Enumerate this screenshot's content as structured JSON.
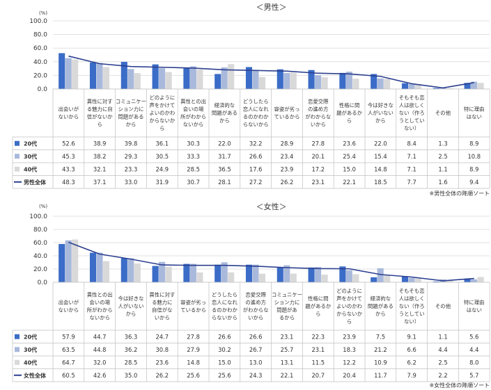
{
  "chart_data": [
    {
      "type": "bar",
      "title": "＜男性＞",
      "ylabel": "(%)",
      "ylim": [
        0,
        100
      ],
      "yticks": [
        "100.0",
        "80.0",
        "60.0",
        "40.0",
        "20.0",
        "0.0"
      ],
      "categories": [
        [
          "出会いが",
          "ないから"
        ],
        [
          "異性に対す",
          "る魅力に自",
          "信がないか",
          "ら"
        ],
        [
          "コミュニケー",
          "ション力に",
          "問題がある",
          "から"
        ],
        [
          "どのように",
          "声をかけて",
          "よいのかわ",
          "からないか",
          "ら"
        ],
        [
          "異性との出",
          "会いの場",
          "所がわから",
          "ないから"
        ],
        [
          "経済的な",
          "問題がある",
          "から"
        ],
        [
          "どうしたら",
          "恋人になれ",
          "るのかわか",
          "らないから"
        ],
        [
          "容姿が劣っ",
          "ているから"
        ],
        [
          "恋愛交際",
          "の進め方",
          "がわからな",
          "いから"
        ],
        [
          "性格に問",
          "題があるか",
          "ら"
        ],
        [
          "今は好きな",
          "人がいない",
          "から"
        ],
        [
          "そもそも恋",
          "人は欲しく",
          "ない（作ろ",
          "うとしてい",
          "ない）"
        ],
        [
          "その他"
        ],
        [
          "特に理由",
          "はない"
        ]
      ],
      "series": [
        {
          "name": "20代",
          "type": "bar",
          "values": [
            "52.6",
            "38.9",
            "39.8",
            "36.1",
            "30.3",
            "22.0",
            "32.2",
            "28.9",
            "27.8",
            "23.6",
            "22.0",
            "8.4",
            "1.3",
            "8.9"
          ]
        },
        {
          "name": "30代",
          "type": "bar",
          "values": [
            "45.3",
            "38.2",
            "29.3",
            "30.5",
            "33.3",
            "31.7",
            "26.6",
            "23.4",
            "20.1",
            "25.4",
            "15.4",
            "7.1",
            "2.5",
            "10.8"
          ]
        },
        {
          "name": "40代",
          "type": "bar",
          "values": [
            "43.3",
            "32.1",
            "23.3",
            "24.9",
            "28.5",
            "36.5",
            "17.6",
            "23.9",
            "17.2",
            "15.0",
            "14.8",
            "7.1",
            "1.1",
            "8.9"
          ]
        },
        {
          "name": "男性全体",
          "type": "line",
          "values": [
            "48.3",
            "37.1",
            "33.0",
            "31.9",
            "30.7",
            "28.1",
            "27.2",
            "26.2",
            "23.1",
            "22.1",
            "18.5",
            "7.7",
            "1.6",
            "9.4"
          ]
        }
      ],
      "note": "※男性全体の降順ソート"
    },
    {
      "type": "bar",
      "title": "＜女性＞",
      "ylabel": "(%)",
      "ylim": [
        0,
        100
      ],
      "yticks": [
        "100.0",
        "80.0",
        "60.0",
        "40.0",
        "20.0",
        "0.0"
      ],
      "categories": [
        [
          "出会いが",
          "ないから"
        ],
        [
          "異性との出",
          "会いの場",
          "所がわから",
          "ないから"
        ],
        [
          "今は好きな",
          "人がいない",
          "から"
        ],
        [
          "異性に対す",
          "る魅力に",
          "自信がな",
          "いから"
        ],
        [
          "容姿が劣っ",
          "ているから"
        ],
        [
          "どうしたら",
          "恋人になれ",
          "るのかわか",
          "らないから"
        ],
        [
          "恋愛交際",
          "の進め方",
          "がわからな",
          "いから"
        ],
        [
          "コミュニケー",
          "ション力に",
          "問題があ",
          "るから"
        ],
        [
          "性格に問",
          "題があるか",
          "ら"
        ],
        [
          "どのように",
          "声をかけて",
          "よいのかわ",
          "からないか",
          "ら"
        ],
        [
          "経済的な",
          "問題がある",
          "から"
        ],
        [
          "そもそも恋",
          "人は欲しく",
          "ない（作ろ",
          "うとしてい",
          "ない）"
        ],
        [
          "その他"
        ],
        [
          "特に理由",
          "はない"
        ]
      ],
      "series": [
        {
          "name": "20代",
          "type": "bar",
          "values": [
            "57.9",
            "44.7",
            "36.3",
            "24.7",
            "27.8",
            "26.6",
            "26.6",
            "23.1",
            "22.3",
            "23.9",
            "7.5",
            "9.1",
            "1.1",
            "5.6"
          ]
        },
        {
          "name": "30代",
          "type": "bar",
          "values": [
            "63.5",
            "44.8",
            "36.2",
            "30.8",
            "27.9",
            "30.2",
            "26.7",
            "25.7",
            "23.1",
            "18.3",
            "21.2",
            "6.6",
            "4.4",
            "4.4"
          ]
        },
        {
          "name": "40代",
          "type": "bar",
          "values": [
            "64.7",
            "32.0",
            "28.5",
            "23.6",
            "14.8",
            "15.0",
            "13.0",
            "13.1",
            "11.5",
            "12.2",
            "10.9",
            "6.2",
            "2.5",
            "8.0"
          ]
        },
        {
          "name": "女性全体",
          "type": "line",
          "values": [
            "60.5",
            "42.6",
            "35.0",
            "26.2",
            "25.6",
            "25.6",
            "24.3",
            "22.1",
            "20.7",
            "20.4",
            "11.7",
            "7.9",
            "2.2",
            "5.7"
          ]
        }
      ],
      "note": "※女性全体の降順ソート"
    }
  ],
  "colors": {
    "s20": "#3b6cc7",
    "s30": "#a9b9dc",
    "s40": "#d9d9d9",
    "line": "#2b3f8f",
    "grid": "#d9d9d9",
    "border": "#bfbfbf"
  }
}
